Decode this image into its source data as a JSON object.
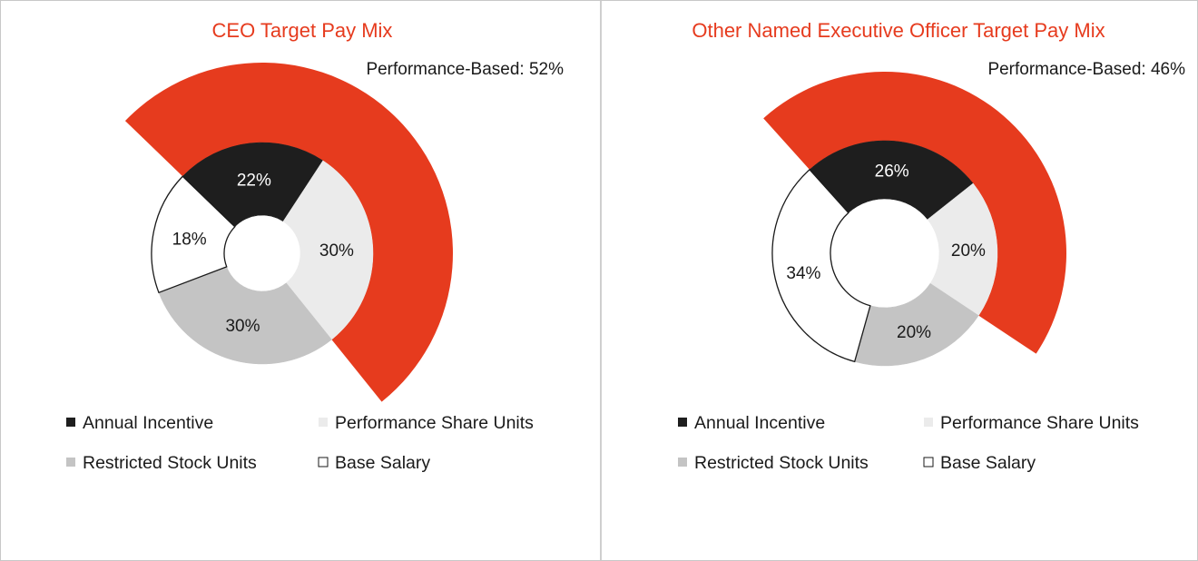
{
  "chart_data": [
    {
      "type": "pie",
      "title": "CEO Target Pay Mix",
      "annotation": "Performance-Based: 52%",
      "series": [
        {
          "name": "Annual Incentive",
          "value": 22,
          "label": "22%",
          "color": "#1e1e1e",
          "text_color": "#ffffff"
        },
        {
          "name": "Performance Share Units",
          "value": 30,
          "label": "30%",
          "color": "#ebebeb",
          "text_color": "#1a1a1a"
        },
        {
          "name": "Restricted Stock Units",
          "value": 30,
          "label": "30%",
          "color": "#c4c4c4",
          "text_color": "#1a1a1a"
        },
        {
          "name": "Base Salary",
          "value": 18,
          "label": "18%",
          "color": "#ffffff",
          "text_color": "#1a1a1a"
        }
      ],
      "performance_based_value": 52,
      "performance_based_color": "#e63b1e"
    },
    {
      "type": "pie",
      "title": "Other Named Executive Officer Target Pay Mix",
      "annotation": "Performance-Based: 46%",
      "series": [
        {
          "name": "Annual Incentive",
          "value": 26,
          "label": "26%",
          "color": "#1e1e1e",
          "text_color": "#ffffff"
        },
        {
          "name": "Performance Share Units",
          "value": 20,
          "label": "20%",
          "color": "#ebebeb",
          "text_color": "#1a1a1a"
        },
        {
          "name": "Restricted Stock Units",
          "value": 20,
          "label": "20%",
          "color": "#c4c4c4",
          "text_color": "#1a1a1a"
        },
        {
          "name": "Base Salary",
          "value": 34,
          "label": "34%",
          "color": "#ffffff",
          "text_color": "#1a1a1a"
        }
      ],
      "performance_based_value": 46,
      "performance_based_color": "#e63b1e"
    }
  ]
}
